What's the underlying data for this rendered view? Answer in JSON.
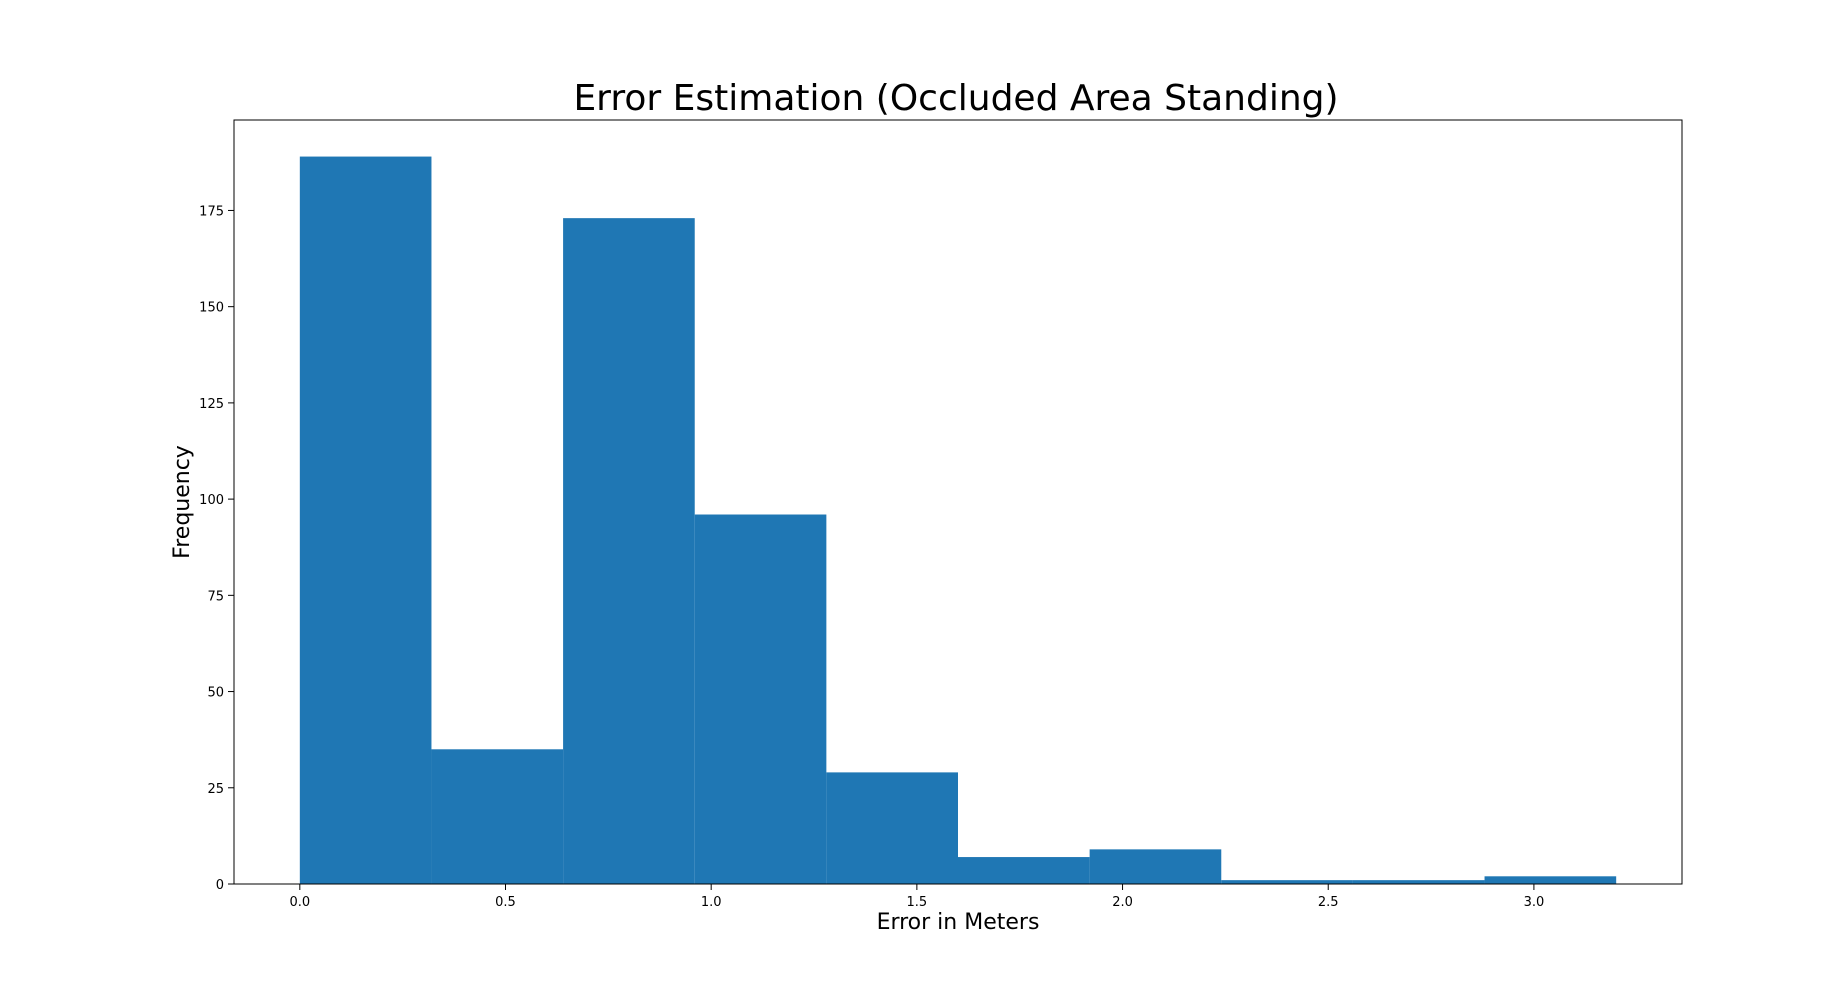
{
  "chart_data": {
    "type": "bar",
    "title": "Error Estimation (Occluded Area Standing)",
    "xlabel": "Error in Meters",
    "ylabel": "Frequency",
    "bin_edges": [
      0.0,
      0.32,
      0.64,
      0.96,
      1.28,
      1.6,
      1.92,
      2.24,
      2.56,
      2.88,
      3.2
    ],
    "values": [
      189,
      35,
      173,
      96,
      29,
      7,
      9,
      1,
      1,
      2
    ],
    "xlim": [
      -0.16,
      3.36
    ],
    "ylim": [
      0,
      198.5
    ],
    "xticks": [
      "0.0",
      "0.5",
      "1.0",
      "1.5",
      "2.0",
      "2.5",
      "3.0"
    ],
    "yticks": [
      "0",
      "25",
      "50",
      "75",
      "100",
      "125",
      "150",
      "175"
    ],
    "bar_color": "#1f77b4",
    "grid": false,
    "legend": "none"
  }
}
